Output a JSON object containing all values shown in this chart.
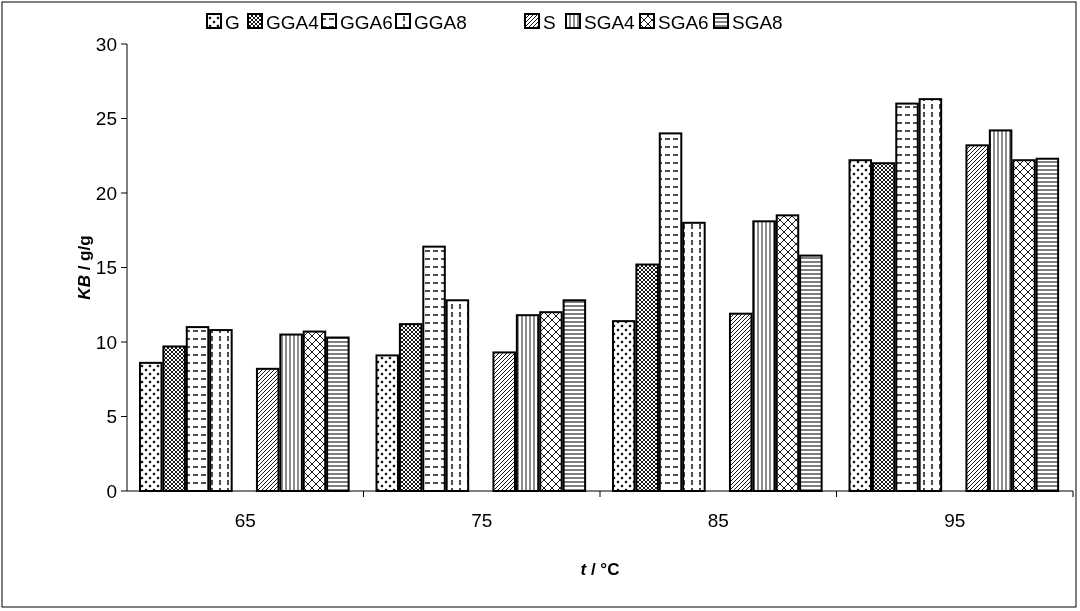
{
  "chart_data": {
    "type": "bar",
    "xlabel": "t / °C",
    "ylabel": "KB / g/g",
    "categories": [
      "65",
      "75",
      "85",
      "95"
    ],
    "series": [
      {
        "name": "G",
        "color": "#000000",
        "values": [
          8.6,
          9.1,
          11.4,
          22.2
        ]
      },
      {
        "name": "GGA4",
        "color": "#000000",
        "values": [
          9.7,
          11.2,
          15.2,
          22.0
        ]
      },
      {
        "name": "GGA6",
        "color": "#000000",
        "values": [
          11.0,
          16.4,
          24.0,
          26.0
        ]
      },
      {
        "name": "GGA8",
        "color": "#000000",
        "values": [
          10.8,
          12.8,
          18.0,
          26.3
        ]
      },
      {
        "name": "S",
        "color": "#000000",
        "values": [
          8.2,
          9.3,
          11.9,
          23.2
        ]
      },
      {
        "name": "SGA4",
        "color": "#000000",
        "values": [
          10.5,
          11.8,
          18.1,
          24.2
        ]
      },
      {
        "name": "SGA6",
        "color": "#000000",
        "values": [
          10.7,
          12.0,
          18.5,
          22.2
        ]
      },
      {
        "name": "SGA8",
        "color": "#000000",
        "values": [
          10.3,
          12.8,
          15.8,
          22.3
        ]
      }
    ],
    "ylim": [
      0,
      30
    ],
    "yticks": [
      0,
      5,
      10,
      15,
      20,
      25,
      30
    ],
    "grid": false,
    "legend": "top"
  }
}
